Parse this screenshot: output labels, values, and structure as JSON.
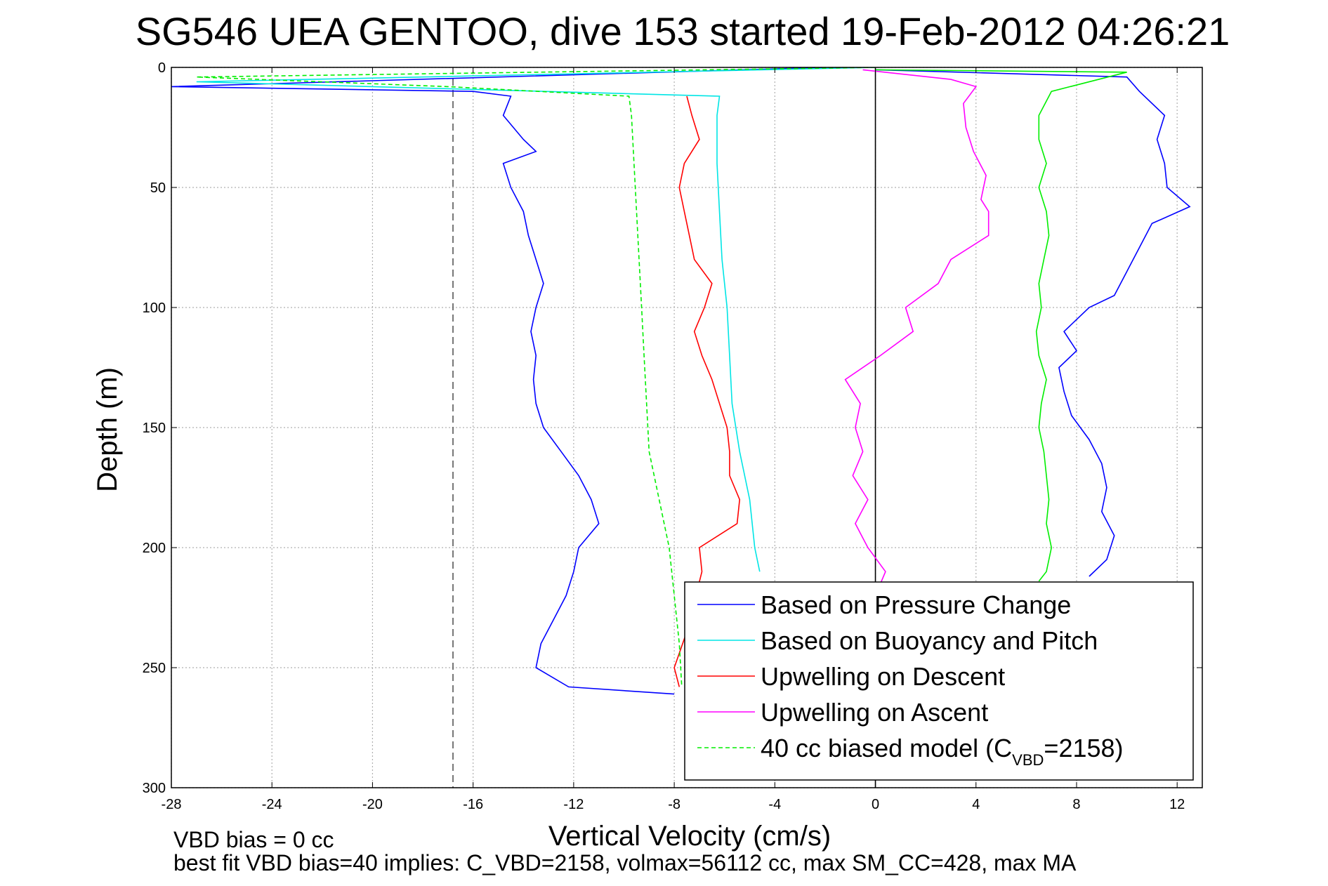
{
  "chart_data": {
    "type": "line",
    "title": "SG546 UEA GENTOO, dive 153 started 19-Feb-2012 04:26:21",
    "xlabel": "Vertical Velocity (cm/s)",
    "ylabel": "Depth (m)",
    "xlim": [
      -28,
      13
    ],
    "ylim": [
      0,
      300
    ],
    "y_reversed": true,
    "grid": true,
    "x_ticks": [
      "-28",
      "-24",
      "-20",
      "-16",
      "-12",
      "-8",
      "-4",
      "0",
      "4",
      "8",
      "12"
    ],
    "y_ticks": [
      "0",
      "50",
      "100",
      "150",
      "200",
      "250",
      "300"
    ],
    "reference_lines": [
      {
        "orientation": "vertical",
        "x": -16.8,
        "style": "dashed",
        "color": "#555555"
      },
      {
        "orientation": "vertical",
        "x": 0,
        "style": "solid",
        "color": "#000000"
      }
    ],
    "legend_position": "bottom-right",
    "series": [
      {
        "name": "Based on Pressure Change",
        "color": "#0000ff",
        "dash": "solid",
        "points": [
          [
            -2,
            0
          ],
          [
            -28,
            8
          ],
          [
            -16,
            10
          ],
          [
            -14.5,
            12
          ],
          [
            -14.8,
            20
          ],
          [
            -14,
            30
          ],
          [
            -13.5,
            35
          ],
          [
            -14.8,
            40
          ],
          [
            -14.5,
            50
          ],
          [
            -14,
            60
          ],
          [
            -13.8,
            70
          ],
          [
            -13.5,
            80
          ],
          [
            -13.2,
            90
          ],
          [
            -13.5,
            100
          ],
          [
            -13.7,
            110
          ],
          [
            -13.5,
            120
          ],
          [
            -13.6,
            130
          ],
          [
            -13.5,
            140
          ],
          [
            -13.2,
            150
          ],
          [
            -12.5,
            160
          ],
          [
            -11.8,
            170
          ],
          [
            -11.3,
            180
          ],
          [
            -11,
            190
          ],
          [
            -11.8,
            200
          ],
          [
            -12,
            210
          ],
          [
            -12.3,
            220
          ],
          [
            -12.8,
            230
          ],
          [
            -13.3,
            240
          ],
          [
            -13.5,
            250
          ],
          [
            -12.2,
            258
          ],
          [
            -8,
            261
          ]
        ]
      },
      {
        "name": "Based on Buoyancy and Pitch",
        "color": "#00e5e5",
        "dash": "solid",
        "points": [
          [
            0,
            0
          ],
          [
            -27,
            6
          ],
          [
            -20,
            8
          ],
          [
            -6.2,
            12
          ],
          [
            -6.3,
            20
          ],
          [
            -6.3,
            40
          ],
          [
            -6.2,
            60
          ],
          [
            -6.1,
            80
          ],
          [
            -5.9,
            100
          ],
          [
            -5.8,
            120
          ],
          [
            -5.7,
            140
          ],
          [
            -5.4,
            160
          ],
          [
            -5,
            180
          ],
          [
            -4.8,
            200
          ],
          [
            -4.6,
            210
          ]
        ]
      },
      {
        "name": "Upwelling on Descent",
        "color": "#ff0000",
        "dash": "solid",
        "points": [
          [
            -7.5,
            12
          ],
          [
            -7.3,
            20
          ],
          [
            -7,
            30
          ],
          [
            -7.6,
            40
          ],
          [
            -7.8,
            50
          ],
          [
            -7.6,
            60
          ],
          [
            -7.4,
            70
          ],
          [
            -7.2,
            80
          ],
          [
            -6.5,
            90
          ],
          [
            -6.8,
            100
          ],
          [
            -7.2,
            110
          ],
          [
            -6.9,
            120
          ],
          [
            -6.5,
            130
          ],
          [
            -6.2,
            140
          ],
          [
            -5.9,
            150
          ],
          [
            -5.8,
            160
          ],
          [
            -5.8,
            170
          ],
          [
            -5.4,
            180
          ],
          [
            -5.5,
            190
          ],
          [
            -7,
            200
          ],
          [
            -6.9,
            210
          ],
          [
            -7.5,
            235
          ],
          [
            -8,
            250
          ],
          [
            -7.8,
            258
          ]
        ]
      },
      {
        "name": "Upwelling on Ascent",
        "color": "#ff00ff",
        "dash": "solid",
        "points": [
          [
            -0.5,
            1
          ],
          [
            3,
            5
          ],
          [
            4,
            8
          ],
          [
            3.5,
            15
          ],
          [
            3.6,
            25
          ],
          [
            3.9,
            35
          ],
          [
            4.4,
            45
          ],
          [
            4.2,
            55
          ],
          [
            4.5,
            60
          ],
          [
            4.5,
            70
          ],
          [
            3,
            80
          ],
          [
            2.5,
            90
          ],
          [
            1.2,
            100
          ],
          [
            1.5,
            110
          ],
          [
            0.2,
            120
          ],
          [
            -1.2,
            130
          ],
          [
            -0.6,
            140
          ],
          [
            -0.8,
            150
          ],
          [
            -0.5,
            160
          ],
          [
            -0.9,
            170
          ],
          [
            -0.3,
            180
          ],
          [
            -0.8,
            190
          ],
          [
            -0.3,
            200
          ],
          [
            0.4,
            210
          ],
          [
            0.2,
            215
          ]
        ]
      },
      {
        "name": "40 cc biased model (C",
        "subscript": "VBD",
        "name_suffix": "=2158)",
        "color": "#00ee00",
        "dash": "dashed",
        "points": [
          [
            0,
            0
          ],
          [
            -27,
            4
          ],
          [
            -17,
            8
          ],
          [
            -9.8,
            12
          ],
          [
            -9.7,
            20
          ],
          [
            -9.6,
            40
          ],
          [
            -9.5,
            60
          ],
          [
            -9.4,
            80
          ],
          [
            -9.3,
            100
          ],
          [
            -9.2,
            120
          ],
          [
            -9.1,
            140
          ],
          [
            -9,
            160
          ],
          [
            -8.6,
            180
          ],
          [
            -8.2,
            200
          ],
          [
            -8,
            220
          ],
          [
            -7.8,
            240
          ],
          [
            -7.7,
            258
          ]
        ]
      },
      {
        "legend": false,
        "color": "#0000ff",
        "dash": "solid",
        "points": [
          [
            0,
            1
          ],
          [
            10,
            4
          ],
          [
            10.5,
            10
          ],
          [
            11.5,
            20
          ],
          [
            11.2,
            30
          ],
          [
            11.5,
            40
          ],
          [
            11.6,
            50
          ],
          [
            12.5,
            58
          ],
          [
            11,
            65
          ],
          [
            10.5,
            75
          ],
          [
            10,
            85
          ],
          [
            9.5,
            95
          ],
          [
            8.5,
            100
          ],
          [
            7.5,
            110
          ],
          [
            8,
            118
          ],
          [
            7.3,
            125
          ],
          [
            7.5,
            135
          ],
          [
            7.8,
            145
          ],
          [
            8.5,
            155
          ],
          [
            9,
            165
          ],
          [
            9.2,
            175
          ],
          [
            9,
            185
          ],
          [
            9.5,
            195
          ],
          [
            9.2,
            205
          ],
          [
            8.5,
            212
          ]
        ]
      },
      {
        "legend": false,
        "color": "#00ee00",
        "dash": "solid",
        "points": [
          [
            0,
            1
          ],
          [
            10,
            2
          ],
          [
            7,
            10
          ],
          [
            6.5,
            20
          ],
          [
            6.5,
            30
          ],
          [
            6.8,
            40
          ],
          [
            6.5,
            50
          ],
          [
            6.8,
            60
          ],
          [
            6.9,
            70
          ],
          [
            6.7,
            80
          ],
          [
            6.5,
            90
          ],
          [
            6.6,
            100
          ],
          [
            6.4,
            110
          ],
          [
            6.5,
            120
          ],
          [
            6.8,
            130
          ],
          [
            6.6,
            140
          ],
          [
            6.5,
            150
          ],
          [
            6.7,
            160
          ],
          [
            6.8,
            170
          ],
          [
            6.9,
            180
          ],
          [
            6.8,
            190
          ],
          [
            7,
            200
          ],
          [
            6.8,
            210
          ],
          [
            6.5,
            214
          ]
        ]
      }
    ]
  },
  "notes": {
    "vbd_bias": "VBD bias = 0 cc",
    "best_fit": "best fit VBD bias=40 implies: C_VBD=2158, volmax=56112 cc, max SM_CC=428, max MA"
  }
}
